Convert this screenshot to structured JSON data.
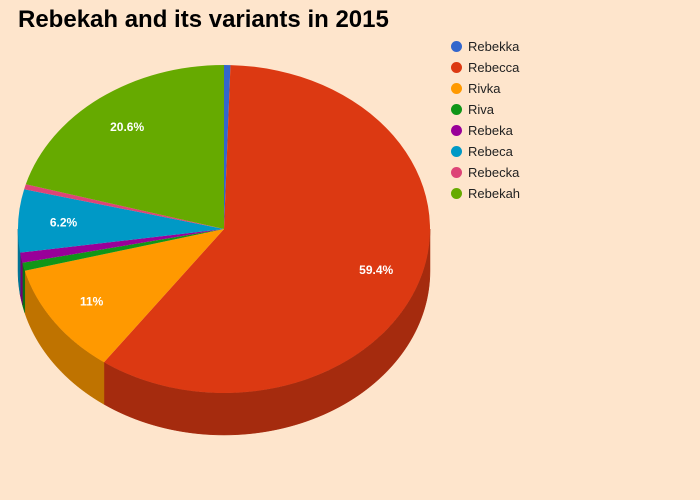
{
  "chart_data": {
    "type": "pie",
    "title": "Rebekah and its variants in 2015",
    "is_3d": true,
    "legend_position": "right",
    "slices": [
      {
        "label": "Rebekka",
        "value": 0.5,
        "color": "#3366cc",
        "show_label": false
      },
      {
        "label": "Rebecca",
        "value": 59.4,
        "color": "#dc3912",
        "show_label": true,
        "data_label": "59.4%"
      },
      {
        "label": "Rivka",
        "value": 11.0,
        "color": "#ff9900",
        "show_label": true,
        "data_label": "11%"
      },
      {
        "label": "Riva",
        "value": 0.8,
        "color": "#109618",
        "show_label": false
      },
      {
        "label": "Rebeka",
        "value": 1.0,
        "color": "#990099",
        "show_label": false
      },
      {
        "label": "Rebeca",
        "value": 6.2,
        "color": "#0099c6",
        "show_label": true,
        "data_label": "6.2%"
      },
      {
        "label": "Rebecka",
        "value": 0.5,
        "color": "#dd4477",
        "show_label": false
      },
      {
        "label": "Rebekah",
        "value": 20.6,
        "color": "#66aa00",
        "show_label": true,
        "data_label": "20.6%"
      }
    ]
  }
}
